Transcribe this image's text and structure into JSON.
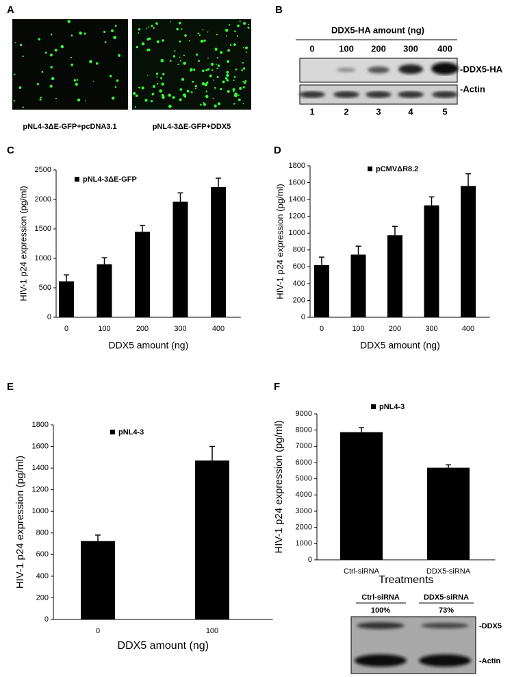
{
  "panel_labels": [
    "A",
    "B",
    "C",
    "D",
    "E",
    "F"
  ],
  "panel_a": {
    "captions": [
      "pNL4-3ΔE-GFP+pcDNA3.1",
      "pNL4-3ΔE-GFP+DDX5"
    ]
  },
  "panel_b": {
    "title": "DDX5-HA amount (ng)",
    "amounts": [
      "0",
      "100",
      "200",
      "300",
      "400"
    ],
    "bands": [
      "-DDX5-HA",
      "-Actin"
    ],
    "lanes": [
      "1",
      "2",
      "3",
      "4",
      "5"
    ]
  },
  "panel_f_blot": {
    "lanes": [
      "Ctrl-siRNA",
      "DDX5-siRNA"
    ],
    "percents": [
      "100%",
      "73%"
    ],
    "bands": [
      "-DDX5",
      "-Actin"
    ]
  },
  "chart_data": [
    {
      "type": "bar",
      "ylabel": "HIV-1 p24 expression (pg/ml)",
      "xlabel": "DDX5 amount (ng)",
      "categories": [
        "0",
        "100",
        "200",
        "300",
        "400"
      ],
      "series": [
        {
          "name": "pNL4-3ΔE-GFP",
          "color": "#000000",
          "values": [
            610,
            900,
            1450,
            1960,
            2210
          ],
          "errors": [
            110,
            110,
            110,
            150,
            150
          ]
        }
      ],
      "ylim": [
        0,
        2500
      ],
      "yticks": [
        0,
        500,
        1000,
        1500,
        2000,
        2500
      ]
    },
    {
      "type": "bar",
      "ylabel": "HIV-1 p24 expression (pg/ml)",
      "xlabel": "DDX5 amount (ng)",
      "categories": [
        "0",
        "100",
        "200",
        "300",
        "400"
      ],
      "series": [
        {
          "name": "pCMVΔR8.2",
          "color": "#000000",
          "values": [
            620,
            745,
            975,
            1330,
            1560
          ],
          "errors": [
            95,
            100,
            105,
            100,
            145
          ]
        }
      ],
      "ylim": [
        0,
        1800
      ],
      "yticks": [
        0,
        200,
        400,
        600,
        800,
        1000,
        1200,
        1400,
        1600,
        1800
      ]
    },
    {
      "type": "bar",
      "ylabel": "HIV-1 p24 expression (pg/ml)",
      "xlabel": "DDX5 amount (ng)",
      "categories": [
        "0",
        "100"
      ],
      "series": [
        {
          "name": "pNL4-3",
          "color": "#000000",
          "values": [
            725,
            1470
          ],
          "errors": [
            55,
            130
          ]
        }
      ],
      "ylim": [
        0,
        1800
      ],
      "yticks": [
        0,
        200,
        400,
        600,
        800,
        1000,
        1200,
        1400,
        1600,
        1800
      ]
    },
    {
      "type": "bar",
      "ylabel": "HIV-1 p24 expression (pg/ml)",
      "xlabel": "Treatments",
      "categories": [
        "Ctrl-siRNA",
        "DDX5-siRNA"
      ],
      "series": [
        {
          "name": "pNL4-3",
          "color": "#000000",
          "values": [
            7870,
            5680
          ],
          "errors": [
            280,
            180
          ]
        }
      ],
      "ylim": [
        0,
        9000
      ],
      "yticks": [
        0,
        1000,
        2000,
        3000,
        4000,
        5000,
        6000,
        7000,
        8000,
        9000
      ]
    }
  ]
}
